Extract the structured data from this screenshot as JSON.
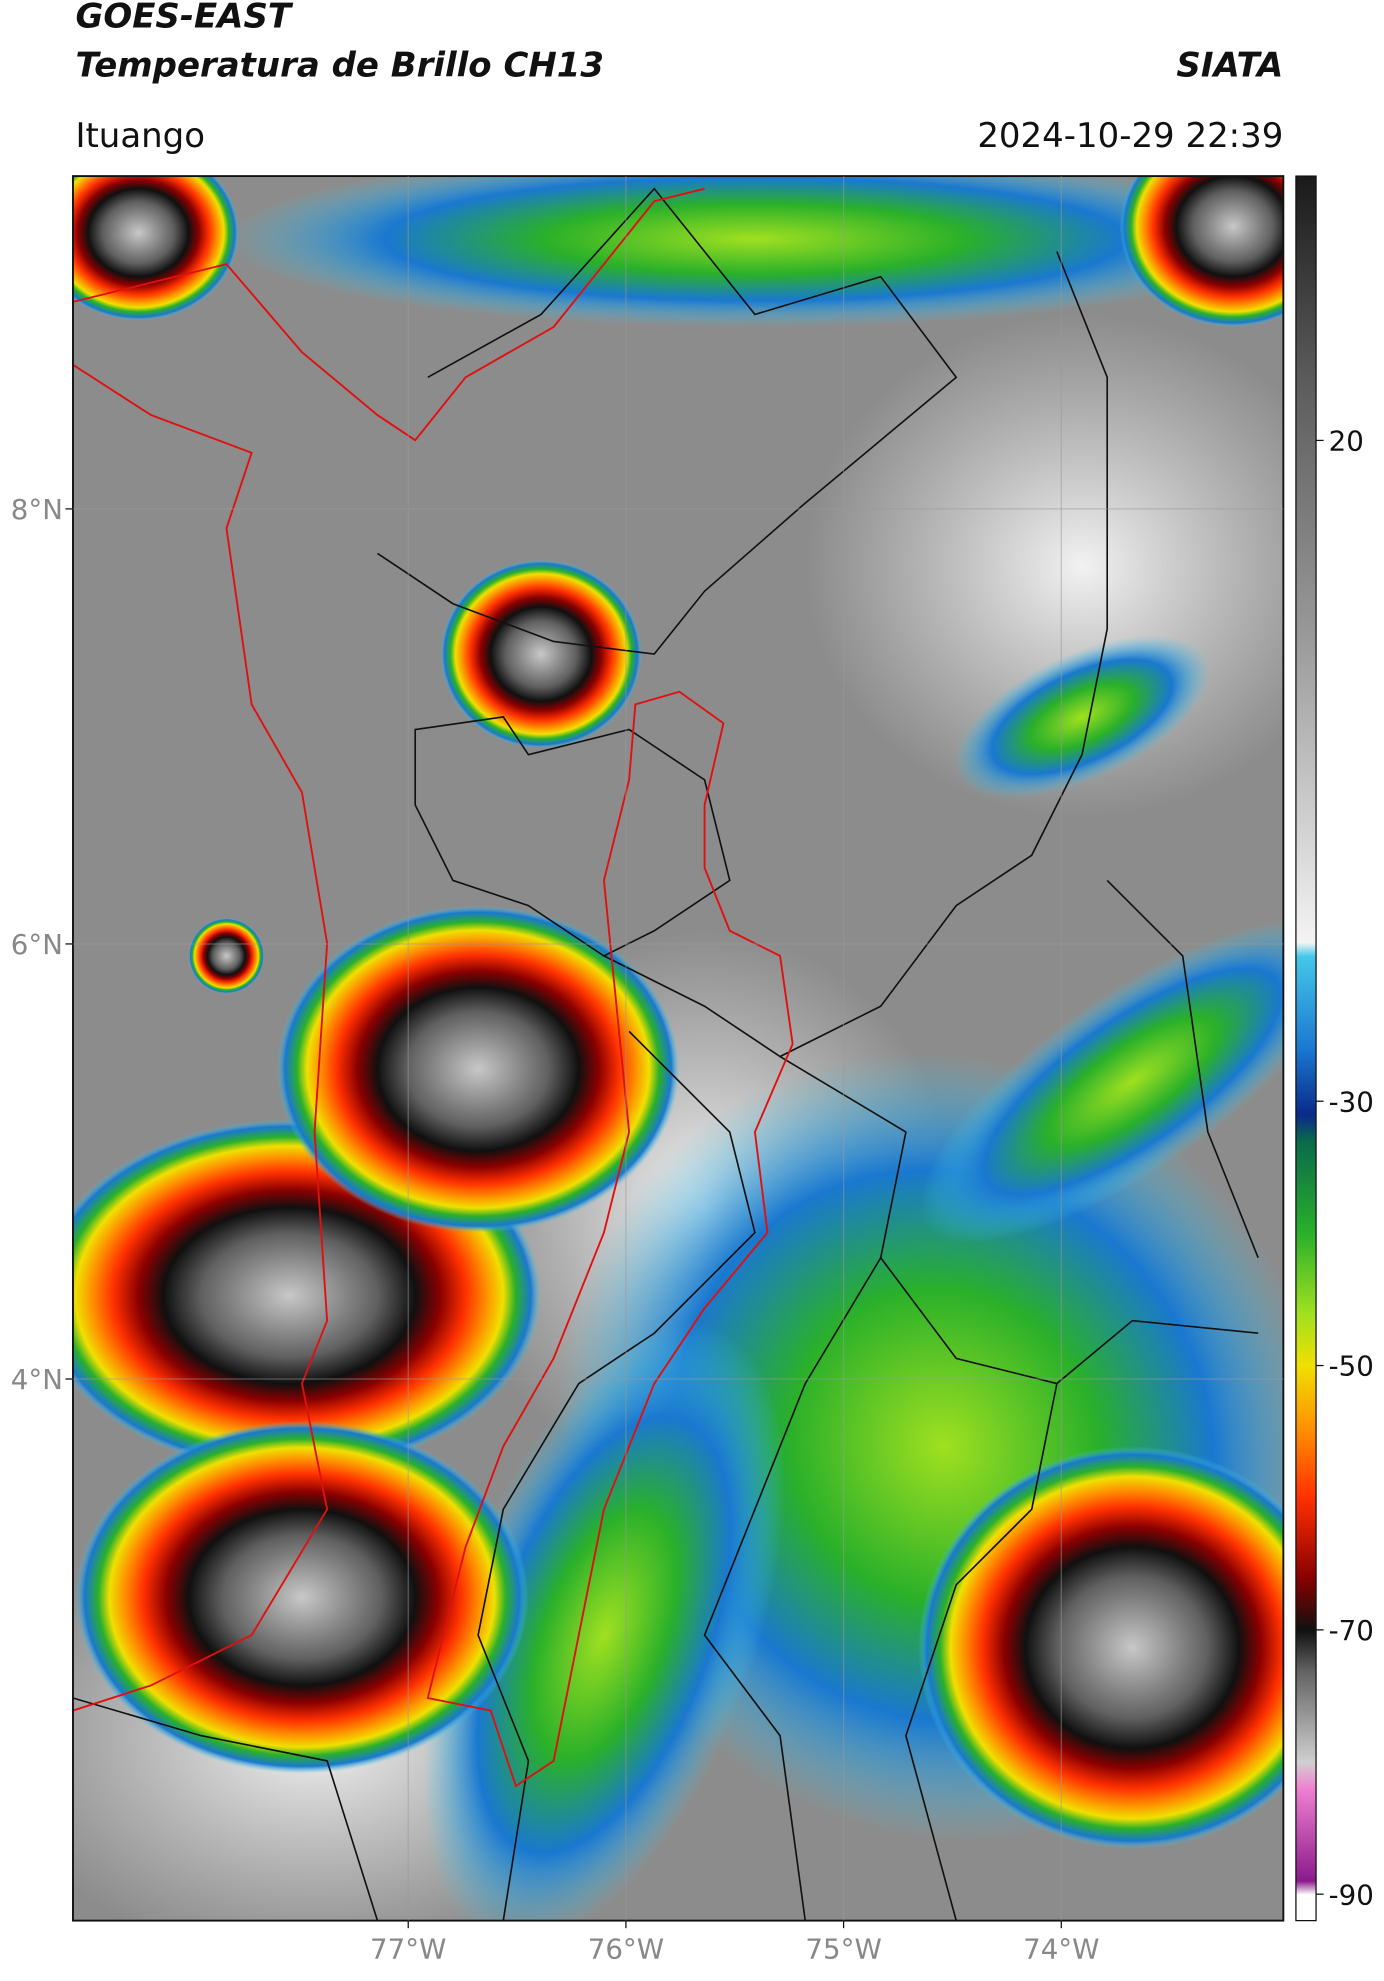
{
  "header": {
    "title": "GOES-EAST",
    "subtitle": "Temperatura de Brillo CH13",
    "brand": "SIATA",
    "location": "Ituango",
    "timestamp": "2024-10-29 22:39"
  },
  "map": {
    "xlim": [
      -78.54,
      -72.98
    ],
    "ylim": [
      1.51,
      9.53
    ],
    "xticks": [
      {
        "value": -77,
        "label": "77°W"
      },
      {
        "value": -76,
        "label": "76°W"
      },
      {
        "value": -75,
        "label": "75°W"
      },
      {
        "value": -74,
        "label": "74°W"
      }
    ],
    "yticks": [
      {
        "value": 8,
        "label": "8°N"
      },
      {
        "value": 6,
        "label": "6°N"
      },
      {
        "value": 4,
        "label": "4°N"
      }
    ],
    "grid": true
  },
  "colorbar": {
    "lim": [
      -92,
      40
    ],
    "ticks": [
      20,
      -30,
      -50,
      -70,
      -90
    ],
    "stops": [
      {
        "value": 40,
        "color": "#1a1a1a"
      },
      {
        "value": 25,
        "color": "#5a5a5a"
      },
      {
        "value": 5,
        "color": "#9a9a9a"
      },
      {
        "value": -18,
        "color": "#f4f4f4"
      },
      {
        "value": -19,
        "color": "#45c8e8"
      },
      {
        "value": -26,
        "color": "#1a78d0"
      },
      {
        "value": -31,
        "color": "#0a2a8a"
      },
      {
        "value": -33,
        "color": "#0a6a4a"
      },
      {
        "value": -40,
        "color": "#2ab02a"
      },
      {
        "value": -46,
        "color": "#a0e020"
      },
      {
        "value": -50,
        "color": "#f0e000"
      },
      {
        "value": -55,
        "color": "#ff8c00"
      },
      {
        "value": -60,
        "color": "#ff3000"
      },
      {
        "value": -66,
        "color": "#8a0000"
      },
      {
        "value": -70,
        "color": "#101010"
      },
      {
        "value": -73,
        "color": "#606060"
      },
      {
        "value": -80,
        "color": "#d0d0d0"
      },
      {
        "value": -82,
        "color": "#f080d0"
      },
      {
        "value": -89,
        "color": "#8a1a8a"
      },
      {
        "value": -90,
        "color": "#ffffff"
      },
      {
        "value": -92,
        "color": "#ffffff"
      }
    ]
  }
}
